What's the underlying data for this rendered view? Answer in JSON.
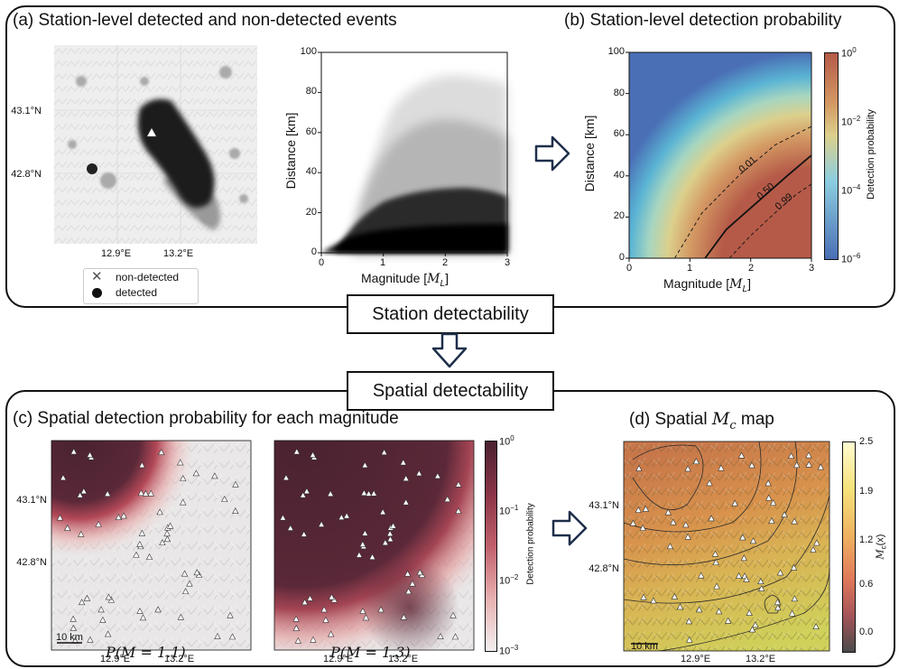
{
  "top_label": "Station detectability",
  "bottom_label": "Spatial detectability",
  "panel_a": {
    "title": "(a) Station-level detected and non-detected events",
    "map": {
      "lat_ticks": [
        "43.1°N",
        "42.8°N"
      ],
      "lon_ticks": [
        "12.9°E",
        "13.2°E"
      ]
    },
    "legend": {
      "non_detected": "non-detected",
      "detected": "detected"
    },
    "scatter": {
      "xlabel": "Magnitude [",
      "xlabel_sym": "M",
      "xlabel_sub": "L",
      "xlabel_end": "]",
      "ylabel": "Distance [km]",
      "xticks": [
        "0",
        "1",
        "2",
        "3"
      ],
      "yticks": [
        "100",
        "80",
        "60",
        "40",
        "20",
        "0"
      ]
    }
  },
  "panel_b": {
    "title": "(b) Station-level detection probability",
    "chart_data": {
      "type": "heatmap",
      "title": "(b) Station-level detection probability",
      "xlabel": "Magnitude [M_L]",
      "ylabel": "Distance [km]",
      "xlim": [
        0,
        3
      ],
      "ylim": [
        0,
        100
      ],
      "xticks": [
        "0",
        "1",
        "2",
        "3"
      ],
      "yticks": [
        "100",
        "80",
        "60",
        "40",
        "20",
        "0"
      ],
      "contours": [
        {
          "level": "0.01",
          "points": [
            [
              0.75,
              0
            ],
            [
              1.2,
              22
            ],
            [
              1.8,
              40
            ],
            [
              2.4,
              55
            ],
            [
              3.0,
              64
            ]
          ]
        },
        {
          "level": "0.50",
          "points": [
            [
              1.25,
              0
            ],
            [
              1.6,
              14
            ],
            [
              2.1,
              27
            ],
            [
              2.6,
              40
            ],
            [
              3.0,
              50
            ]
          ]
        },
        {
          "level": "0.99",
          "points": [
            [
              1.65,
              0
            ],
            [
              2.0,
              11
            ],
            [
              2.4,
              22
            ],
            [
              2.75,
              31
            ],
            [
              3.0,
              36
            ]
          ]
        }
      ],
      "colorbar": {
        "label": "Detection probability",
        "ticks": [
          "10",
          "10",
          "10",
          "10"
        ],
        "exps": [
          "0",
          "−2",
          "−4",
          "−6"
        ],
        "range": [
          1e-06,
          1
        ]
      }
    }
  },
  "panel_c": {
    "title": "(c) Spatial detection probability for each magnitude",
    "lat_ticks": [
      "43.1°N",
      "42.8°N"
    ],
    "lon_ticks": [
      "12.9°E",
      "13.2°E"
    ],
    "scale": "10 km",
    "caption1": "P(M = 1.1)",
    "caption2": "P(M = 1.3)",
    "colorbar": {
      "label": "Detection probability",
      "ticks": [
        "10",
        "10",
        "10",
        "10"
      ],
      "exps": [
        "0",
        "−1",
        "−2",
        "−3"
      ]
    }
  },
  "panel_d": {
    "title_pre": "(d) Spatial ",
    "title_sym": "M",
    "title_sub": "c",
    "title_post": " map",
    "lat_ticks": [
      "43.1°N",
      "42.8°N"
    ],
    "lon_ticks": [
      "12.9°E",
      "13.2°E"
    ],
    "scale": "10 km",
    "colorbar": {
      "label": "M",
      "label_sub": "c",
      "label_arg": "(x)",
      "ticks": [
        "2.5",
        "1.9",
        "1.2",
        "0.6",
        "0.0"
      ]
    }
  },
  "colors": {
    "dark_red": "#4a2230",
    "mid_red": "#b04050",
    "warm": "#e8a070",
    "blue": "#4a6fb5"
  }
}
